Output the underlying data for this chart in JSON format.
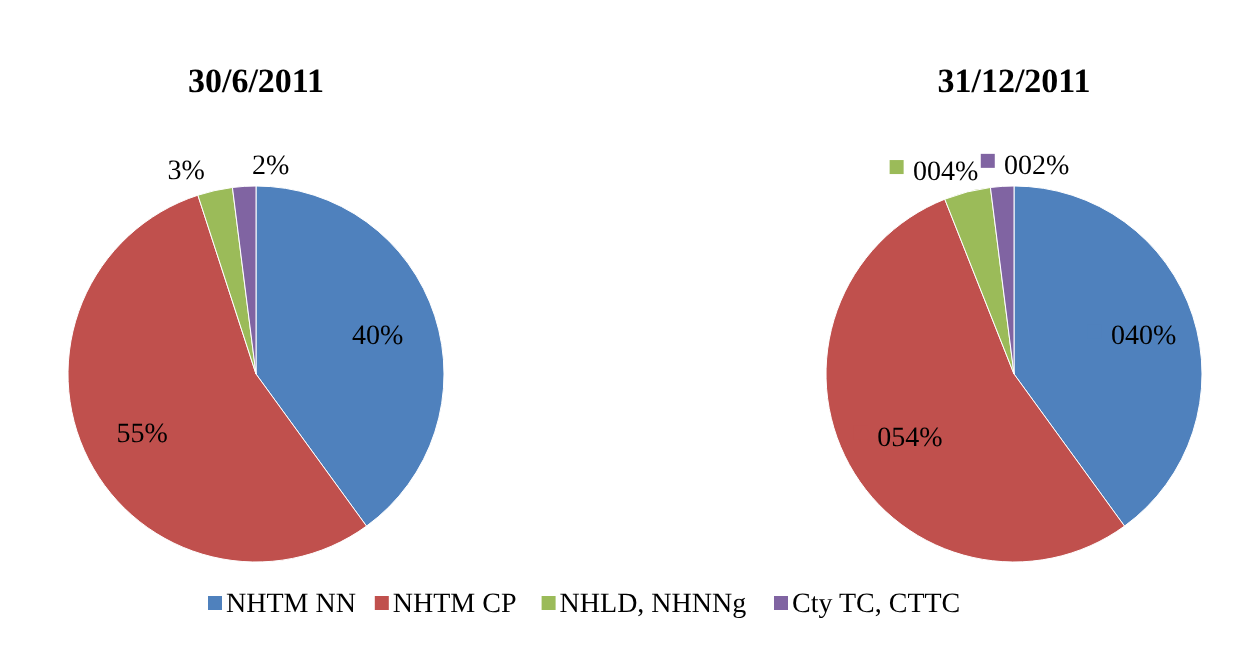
{
  "chart_data": [
    {
      "type": "pie",
      "title": "30/6/2011",
      "categories": [
        "NHTM NN",
        "NHTM CP",
        "NHLD, NHNNg",
        "Cty TC, CTTC"
      ],
      "values": [
        40,
        55,
        3,
        2
      ],
      "colors": [
        "#4f81bd",
        "#c0504d",
        "#9bbb59",
        "#8064a2"
      ],
      "value_labels": [
        "40%",
        "55%",
        "3%",
        "2%"
      ],
      "legend": "bottom"
    },
    {
      "type": "pie",
      "title": "31/12/2011",
      "categories": [
        null,
        null,
        null,
        null
      ],
      "values": [
        40,
        54,
        4,
        2
      ],
      "colors": [
        "#4f81bd",
        "#c0504d",
        "#9bbb59",
        "#8064a2"
      ],
      "value_labels": [
        "040%",
        "054%",
        "004%",
        "002%"
      ]
    }
  ]
}
